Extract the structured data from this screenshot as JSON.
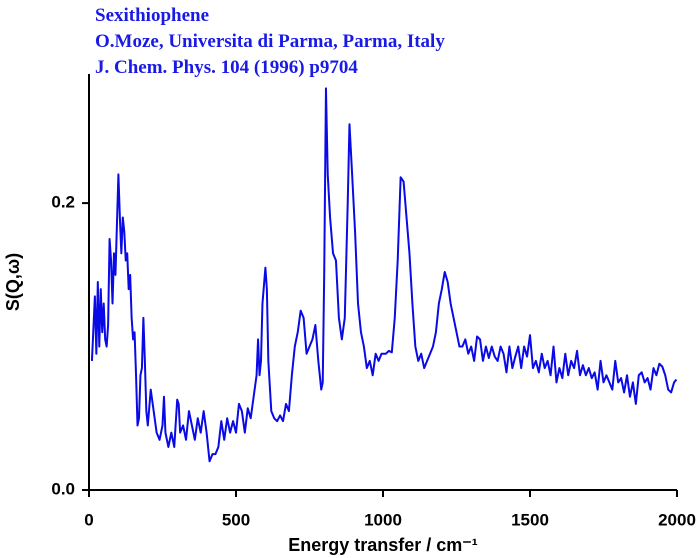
{
  "chart_data": {
    "type": "line",
    "title_lines": [
      "Sexithiophene",
      "O.Moze, Universita di Parma, Parma, Italy",
      "J. Chem. Phys. 104 (1996) p9704"
    ],
    "x_label": "Energy transfer / cm⁻¹",
    "y_label": "S(Q,ω)",
    "xlim": [
      0,
      2000
    ],
    "xticks": [
      0,
      500,
      1000,
      1500,
      2000
    ],
    "ylim": [
      0,
      0.29
    ],
    "yticks": [
      {
        "value": 0,
        "label": "0.0"
      },
      0.2
    ],
    "grid": false,
    "x": [
      10,
      20,
      25,
      30,
      35,
      40,
      45,
      50,
      55,
      60,
      65,
      70,
      75,
      80,
      85,
      90,
      95,
      100,
      105,
      110,
      115,
      120,
      125,
      130,
      135,
      140,
      145,
      150,
      155,
      160,
      165,
      170,
      175,
      180,
      185,
      190,
      195,
      200,
      210,
      220,
      230,
      240,
      250,
      255,
      260,
      270,
      280,
      290,
      300,
      305,
      310,
      320,
      330,
      340,
      350,
      360,
      370,
      380,
      390,
      400,
      410,
      420,
      430,
      440,
      450,
      460,
      470,
      480,
      490,
      500,
      510,
      520,
      530,
      540,
      550,
      560,
      570,
      575,
      580,
      585,
      590,
      600,
      605,
      610,
      620,
      630,
      640,
      650,
      660,
      670,
      680,
      690,
      700,
      710,
      720,
      730,
      740,
      750,
      760,
      770,
      780,
      790,
      795,
      800,
      806,
      812,
      820,
      830,
      840,
      850,
      860,
      870,
      880,
      886,
      895,
      905,
      915,
      925,
      935,
      945,
      955,
      965,
      975,
      985,
      995,
      1010,
      1020,
      1030,
      1040,
      1050,
      1060,
      1070,
      1080,
      1090,
      1100,
      1110,
      1120,
      1130,
      1140,
      1150,
      1160,
      1170,
      1180,
      1190,
      1200,
      1210,
      1220,
      1230,
      1240,
      1250,
      1260,
      1270,
      1280,
      1290,
      1300,
      1310,
      1320,
      1330,
      1340,
      1350,
      1360,
      1370,
      1380,
      1390,
      1400,
      1410,
      1420,
      1430,
      1440,
      1450,
      1460,
      1470,
      1480,
      1490,
      1500,
      1510,
      1520,
      1530,
      1540,
      1550,
      1560,
      1570,
      1580,
      1590,
      1600,
      1610,
      1620,
      1630,
      1640,
      1650,
      1660,
      1670,
      1680,
      1690,
      1700,
      1710,
      1720,
      1730,
      1740,
      1750,
      1760,
      1770,
      1780,
      1790,
      1800,
      1810,
      1820,
      1830,
      1840,
      1850,
      1860,
      1870,
      1880,
      1890,
      1900,
      1910,
      1920,
      1930,
      1940,
      1950,
      1960,
      1970,
      1980,
      1990,
      1998
    ],
    "series": [
      {
        "name": "Sexithiophene",
        "color": "#0a0ae6",
        "values": [
          0.09,
          0.135,
          0.095,
          0.145,
          0.1,
          0.14,
          0.11,
          0.13,
          0.105,
          0.1,
          0.115,
          0.175,
          0.16,
          0.13,
          0.165,
          0.15,
          0.185,
          0.22,
          0.19,
          0.165,
          0.19,
          0.18,
          0.16,
          0.165,
          0.14,
          0.15,
          0.12,
          0.105,
          0.11,
          0.08,
          0.045,
          0.05,
          0.08,
          0.085,
          0.12,
          0.09,
          0.055,
          0.045,
          0.07,
          0.055,
          0.04,
          0.035,
          0.045,
          0.065,
          0.04,
          0.03,
          0.04,
          0.03,
          0.063,
          0.06,
          0.04,
          0.045,
          0.035,
          0.055,
          0.045,
          0.035,
          0.05,
          0.04,
          0.055,
          0.04,
          0.02,
          0.025,
          0.025,
          0.03,
          0.048,
          0.035,
          0.05,
          0.04,
          0.048,
          0.04,
          0.06,
          0.055,
          0.04,
          0.057,
          0.05,
          0.065,
          0.08,
          0.105,
          0.08,
          0.09,
          0.13,
          0.155,
          0.14,
          0.09,
          0.055,
          0.05,
          0.048,
          0.052,
          0.048,
          0.06,
          0.055,
          0.08,
          0.1,
          0.11,
          0.125,
          0.12,
          0.095,
          0.1,
          0.105,
          0.115,
          0.09,
          0.07,
          0.075,
          0.15,
          0.28,
          0.22,
          0.19,
          0.165,
          0.16,
          0.12,
          0.105,
          0.12,
          0.2,
          0.255,
          0.22,
          0.18,
          0.13,
          0.11,
          0.1,
          0.085,
          0.09,
          0.08,
          0.095,
          0.09,
          0.095,
          0.095,
          0.097,
          0.096,
          0.12,
          0.16,
          0.218,
          0.215,
          0.19,
          0.165,
          0.13,
          0.1,
          0.09,
          0.095,
          0.085,
          0.09,
          0.095,
          0.1,
          0.11,
          0.13,
          0.14,
          0.152,
          0.145,
          0.13,
          0.12,
          0.11,
          0.1,
          0.1,
          0.105,
          0.095,
          0.1,
          0.09,
          0.107,
          0.105,
          0.09,
          0.1,
          0.092,
          0.1,
          0.093,
          0.09,
          0.1,
          0.095,
          0.082,
          0.1,
          0.085,
          0.093,
          0.1,
          0.085,
          0.1,
          0.093,
          0.108,
          0.085,
          0.09,
          0.082,
          0.095,
          0.085,
          0.09,
          0.08,
          0.1,
          0.075,
          0.085,
          0.078,
          0.095,
          0.08,
          0.09,
          0.085,
          0.097,
          0.08,
          0.087,
          0.08,
          0.085,
          0.078,
          0.082,
          0.07,
          0.09,
          0.075,
          0.08,
          0.075,
          0.07,
          0.09,
          0.075,
          0.078,
          0.068,
          0.08,
          0.065,
          0.075,
          0.06,
          0.08,
          0.082,
          0.075,
          0.078,
          0.07,
          0.085,
          0.08,
          0.088,
          0.086,
          0.08,
          0.07,
          0.068,
          0.075,
          0.077
        ]
      }
    ]
  }
}
